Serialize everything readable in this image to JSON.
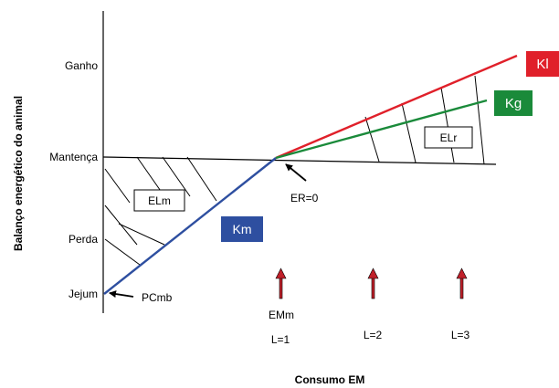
{
  "axes": {
    "y_label": "Balanço energético do animal",
    "x_label": "Consumo EM",
    "y_ticks": [
      "Ganho",
      "Mantença",
      "Perda",
      "Jejum"
    ]
  },
  "lines": {
    "km": {
      "label": "Km",
      "color": "#2e4fa0"
    },
    "kl": {
      "label": "Kl",
      "color": "#e0202a"
    },
    "kg": {
      "label": "Kg",
      "color": "#1a8a3a"
    }
  },
  "regions": {
    "elm": "ELm",
    "elr": "ELr"
  },
  "annotations": {
    "er": "ER=0",
    "pcmb": "PCmb",
    "emm": "EMm"
  },
  "intake_levels": [
    "L=1",
    "L=2",
    "L=3"
  ],
  "colors": {
    "arrow_fill": "#c0202a",
    "maintenance_line": "#000000"
  }
}
